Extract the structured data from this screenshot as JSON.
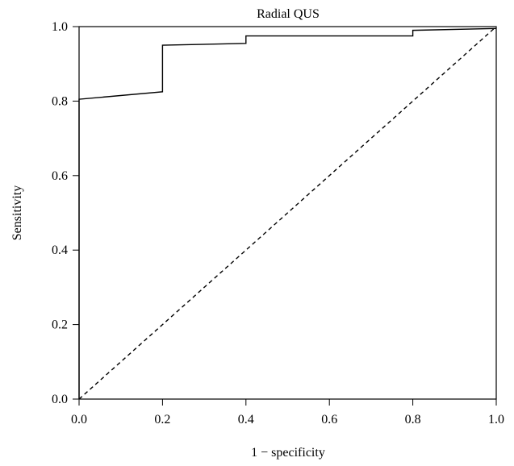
{
  "chart_data": {
    "type": "line",
    "title": "Radial QUS",
    "xlabel": "1 − specificity",
    "ylabel": "Sensitivity",
    "xlim": [
      0.0,
      1.0
    ],
    "ylim": [
      0.0,
      1.0
    ],
    "x_ticks": [
      0.0,
      0.2,
      0.4,
      0.6,
      0.8,
      1.0
    ],
    "x_tick_labels": [
      "0.0",
      "0.2",
      "0.4",
      "0.6",
      "0.8",
      "1.0"
    ],
    "y_ticks": [
      0.0,
      0.2,
      0.4,
      0.6,
      0.8,
      1.0
    ],
    "y_tick_labels": [
      "0.0",
      "0.2",
      "0.4",
      "0.6",
      "0.8",
      "1.0"
    ],
    "grid": false,
    "legend": false,
    "series": [
      {
        "style": "solid",
        "color": "#000000",
        "points": [
          [
            0.0,
            0.0
          ],
          [
            0.0,
            0.805
          ],
          [
            0.2,
            0.825
          ],
          [
            0.2,
            0.95
          ],
          [
            0.4,
            0.955
          ],
          [
            0.4,
            0.975
          ],
          [
            0.8,
            0.975
          ],
          [
            0.8,
            0.99
          ],
          [
            1.0,
            0.995
          ]
        ]
      },
      {
        "style": "dashed",
        "color": "#000000",
        "points": [
          [
            0.0,
            0.0
          ],
          [
            1.0,
            1.0
          ]
        ]
      }
    ]
  }
}
